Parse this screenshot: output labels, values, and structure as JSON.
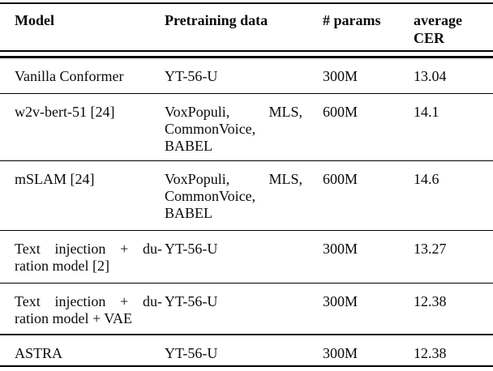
{
  "table": {
    "headers": [
      {
        "label": "Model"
      },
      {
        "label": "Pretraining data"
      },
      {
        "label": "# params"
      },
      {
        "label": "average CER"
      }
    ],
    "rows": [
      {
        "model_lines": [
          "Vanilla Conformer"
        ],
        "pretraining_lines": [
          "YT-56-U"
        ],
        "params": "300M",
        "cer": "13.04"
      },
      {
        "model_lines": [
          "w2v-bert-51 [24]"
        ],
        "pretraining_lines": [
          "VoxPopuli, MLS,",
          "CommonVoice,",
          "BABEL"
        ],
        "params": "600M",
        "cer": "14.1"
      },
      {
        "model_lines": [
          "mSLAM [24]"
        ],
        "pretraining_lines": [
          "VoxPopuli, MLS,",
          "CommonVoice,",
          "BABEL"
        ],
        "params": "600M",
        "cer": "14.6"
      },
      {
        "model_lines": [
          "Text injection + du-",
          "ration model [2]"
        ],
        "pretraining_lines": [
          "YT-56-U"
        ],
        "params": "300M",
        "cer": "13.27"
      },
      {
        "model_lines": [
          "Text injection + du-",
          "ration model + VAE"
        ],
        "pretraining_lines": [
          "YT-56-U"
        ],
        "params": "300M",
        "cer": "12.38"
      },
      {
        "model_lines": [
          "ASTRA"
        ],
        "pretraining_lines": [
          "YT-56-U"
        ],
        "params": "300M",
        "cer": "12.38"
      }
    ],
    "text_color": "#0a0a0a",
    "rule_color": "#000000",
    "background_color": "#ffffff"
  }
}
